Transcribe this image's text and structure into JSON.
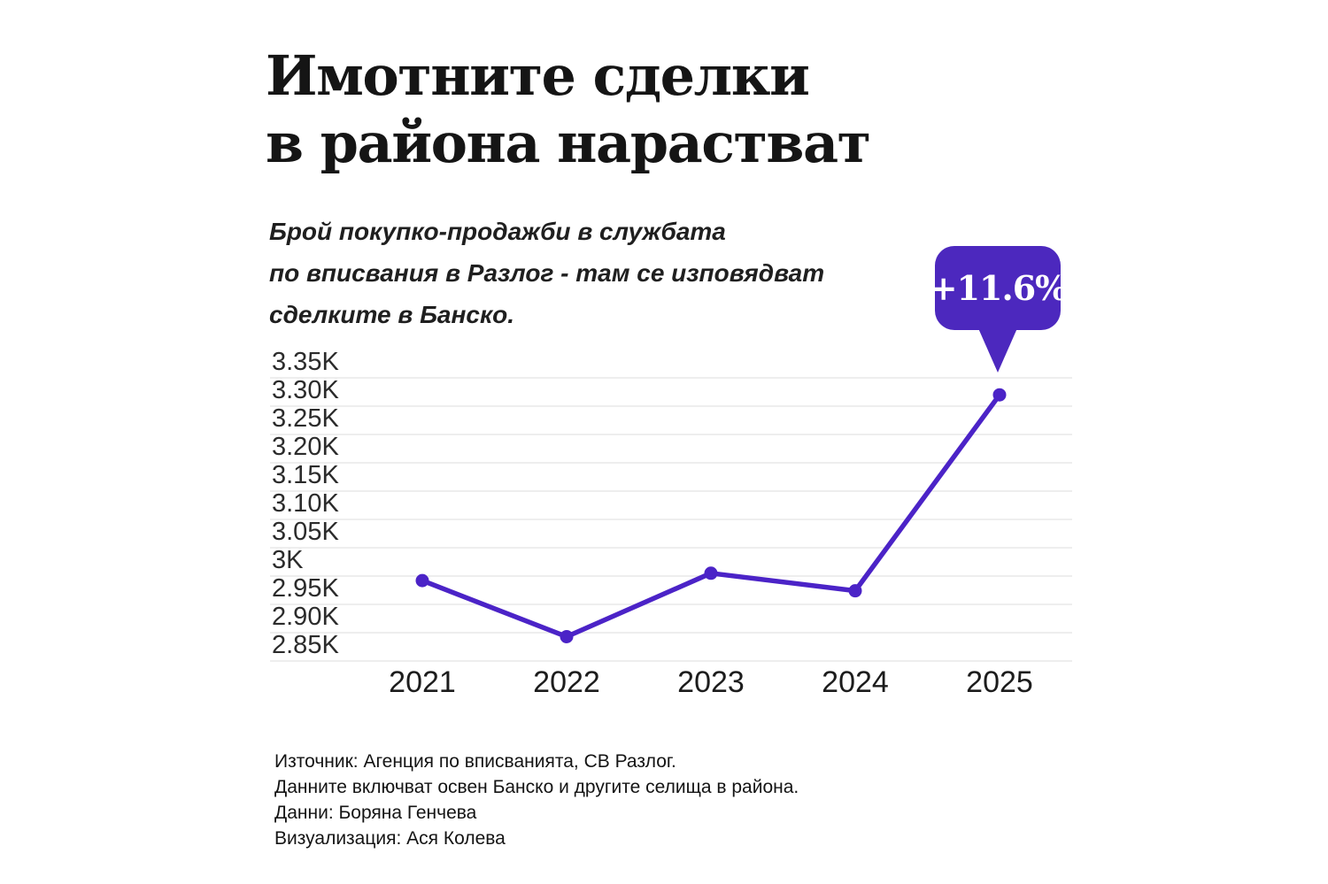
{
  "title": {
    "line1": "Имотните сделки",
    "line2": "в района нарастват"
  },
  "subtitle": {
    "line1": "Брой покупко-продажби в службата",
    "line2": "по вписвания в Разлог - там се изповядват",
    "line3": "сделките в Банско."
  },
  "callout": {
    "label": "+11.6%",
    "color": "#4c28be"
  },
  "chart_data": {
    "type": "line",
    "x": [
      "2021",
      "2022",
      "2023",
      "2024",
      "2025"
    ],
    "series": [
      {
        "name": "Брой покупко-продажби",
        "values": [
          2992,
          2893,
          3005,
          2974,
          3320
        ]
      }
    ],
    "annotation": {
      "text": "+11.6%",
      "target_x": "2025"
    },
    "ylim": [
      2850,
      3350
    ],
    "ytick_step": 50,
    "ytick_labels_top_down": [
      "3.35K",
      "3.30K",
      "3.25K",
      "3.20K",
      "3.15K",
      "3.10K",
      "3.05K",
      "3K",
      "2.95K",
      "2.90K",
      "2.85K"
    ],
    "grid": true,
    "legend": "none",
    "line_color": "#4b23c7",
    "point_color": "#4b23c7",
    "grid_color": "#e9e9e9",
    "title": "Имотните сделки в района нарастват",
    "xlabel": "",
    "ylabel": ""
  },
  "footer": {
    "lines": [
      "Източник: Агенция по вписванията, СВ Разлог.",
      "Данните включват освен Банско и другите селища в района.",
      "Данни: Боряна Генчева",
      "Визуализация: Ася Колева"
    ]
  }
}
